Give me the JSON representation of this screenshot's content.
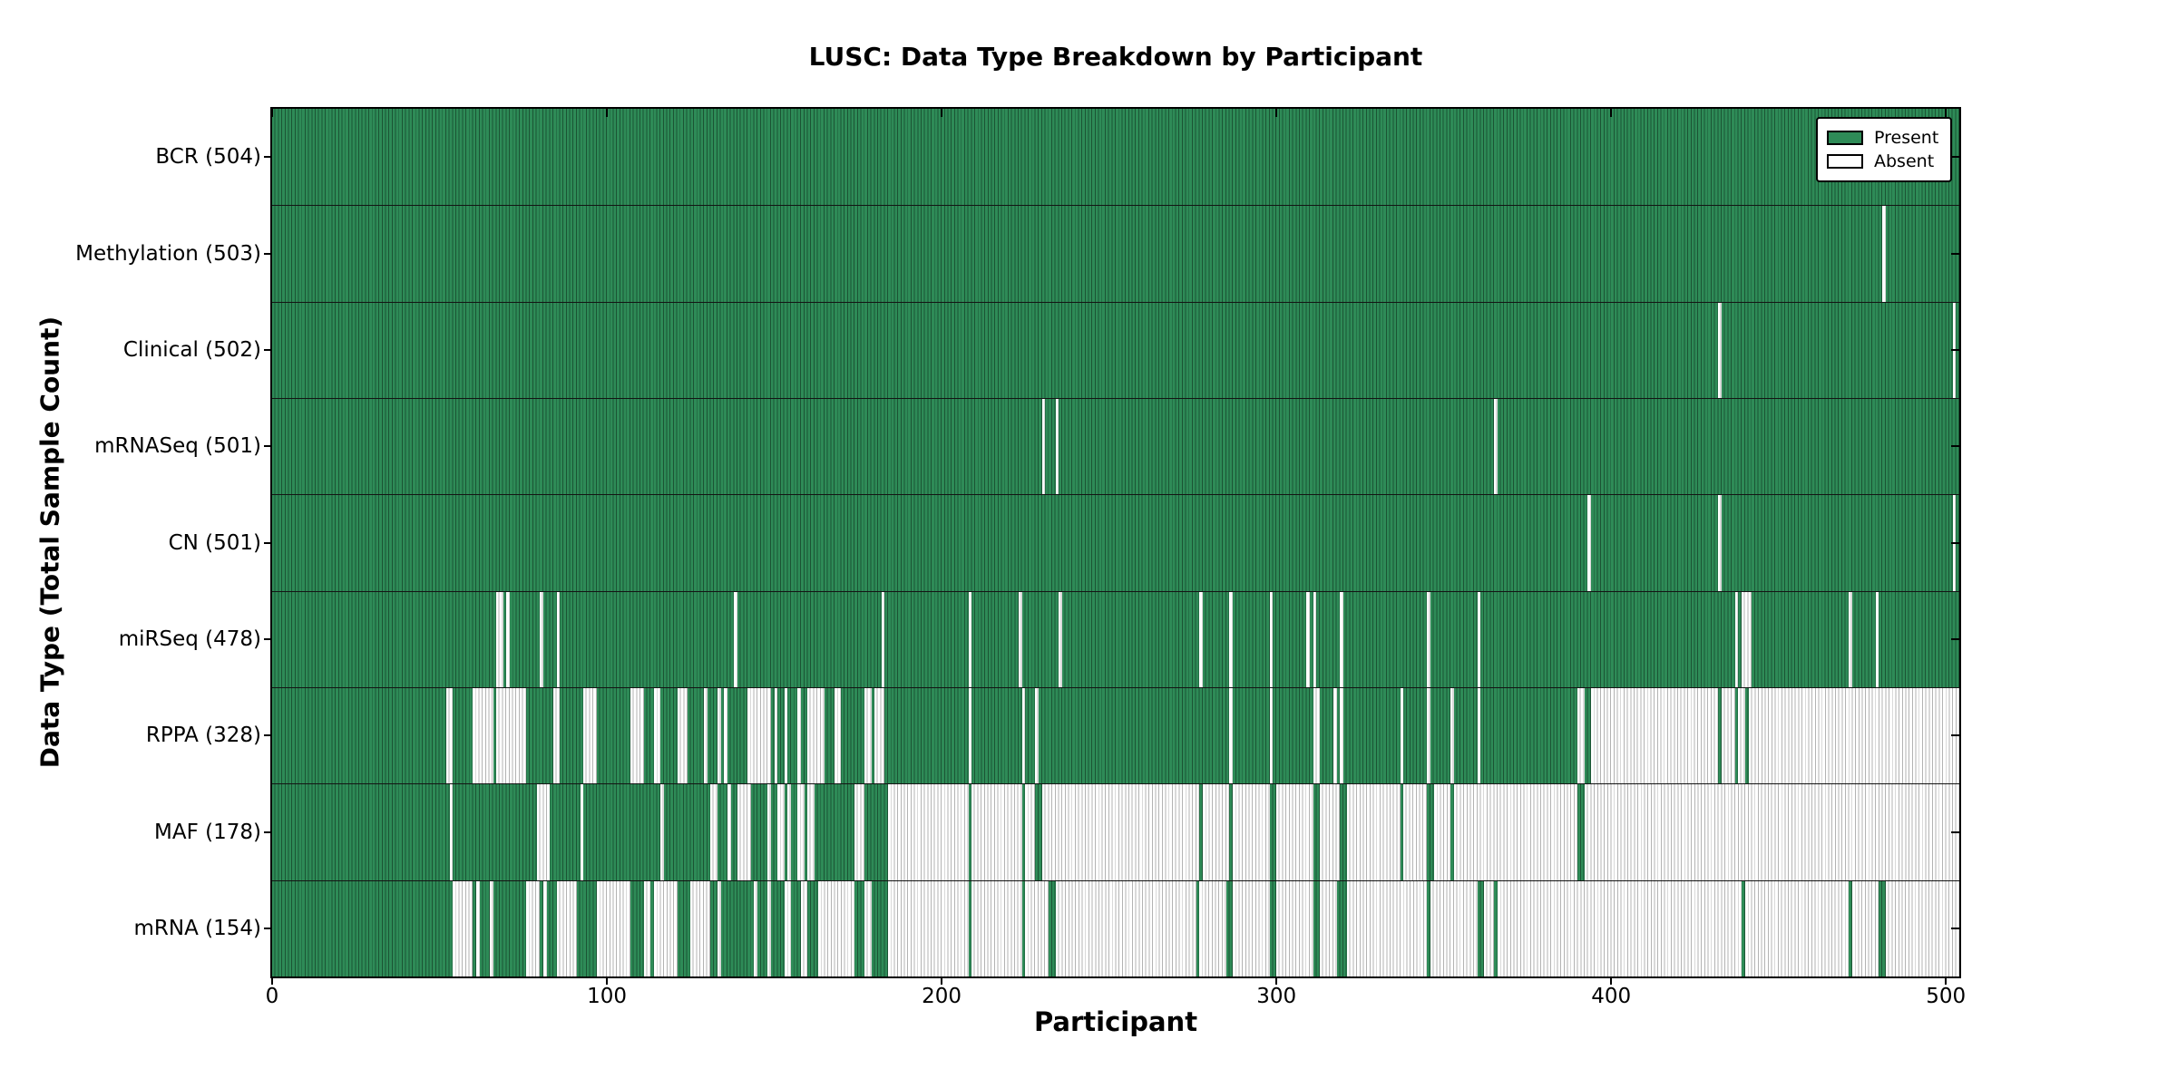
{
  "chart_data": {
    "type": "heatmap",
    "title": "LUSC: Data Type Breakdown by Participant",
    "xlabel": "Participant",
    "ylabel": "Data Type (Total Sample Count)",
    "grid": false,
    "legend_position": "upper right",
    "legend": [
      {
        "label": "Present",
        "color": "#2e8b57"
      },
      {
        "label": "Absent",
        "color": "#ffffff"
      }
    ],
    "x_axis": {
      "ticks": [
        0,
        100,
        200,
        300,
        400,
        500
      ],
      "max": 504
    },
    "cell_states": [
      "present",
      "absent"
    ],
    "rows": [
      {
        "label": "BCR (504)",
        "data_type": "BCR",
        "present_count": 504,
        "absent_ranges": []
      },
      {
        "label": "Methylation (503)",
        "data_type": "Methylation",
        "present_count": 503,
        "absent_ranges": [
          [
            481,
            482
          ]
        ]
      },
      {
        "label": "Clinical (502)",
        "data_type": "Clinical",
        "present_count": 502,
        "absent_ranges": [
          [
            432,
            433
          ],
          [
            502,
            503
          ]
        ]
      },
      {
        "label": "mRNASeq (501)",
        "data_type": "mRNASeq",
        "present_count": 501,
        "absent_ranges": [
          [
            230,
            231
          ],
          [
            234,
            235
          ],
          [
            365,
            366
          ]
        ]
      },
      {
        "label": "CN (501)",
        "data_type": "CN",
        "present_count": 501,
        "absent_ranges": [
          [
            393,
            394
          ],
          [
            432,
            433
          ],
          [
            502,
            503
          ]
        ]
      },
      {
        "label": "miRSeq (478)",
        "data_type": "miRSeq",
        "present_count": 478,
        "absent_ranges": [
          [
            67,
            69
          ],
          [
            70,
            71
          ],
          [
            80,
            81
          ],
          [
            85,
            86
          ],
          [
            138,
            139
          ],
          [
            182,
            183
          ],
          [
            208,
            209
          ],
          [
            223,
            224
          ],
          [
            235,
            236
          ],
          [
            277,
            278
          ],
          [
            286,
            287
          ],
          [
            298,
            299
          ],
          [
            309,
            310
          ],
          [
            311,
            312
          ],
          [
            319,
            320
          ],
          [
            345,
            346
          ],
          [
            360,
            361
          ],
          [
            437,
            438
          ],
          [
            439,
            442
          ],
          [
            471,
            472
          ],
          [
            479,
            480
          ]
        ]
      },
      {
        "label": "RPPA (328)",
        "data_type": "RPPA",
        "present_count": 328,
        "absent_ranges": [
          [
            52,
            54
          ],
          [
            60,
            66
          ],
          [
            67,
            76
          ],
          [
            84,
            86
          ],
          [
            93,
            97
          ],
          [
            107,
            111
          ],
          [
            114,
            116
          ],
          [
            121,
            124
          ],
          [
            129,
            130
          ],
          [
            133,
            134
          ],
          [
            135,
            136
          ],
          [
            142,
            149
          ],
          [
            150,
            151
          ],
          [
            153,
            154
          ],
          [
            157,
            158
          ],
          [
            160,
            165
          ],
          [
            168,
            170
          ],
          [
            177,
            179
          ],
          [
            180,
            183
          ],
          [
            208,
            209
          ],
          [
            224,
            225
          ],
          [
            228,
            229
          ],
          [
            286,
            287
          ],
          [
            298,
            299
          ],
          [
            311,
            313
          ],
          [
            317,
            318
          ],
          [
            319,
            320
          ],
          [
            337,
            338
          ],
          [
            345,
            346
          ],
          [
            352,
            353
          ],
          [
            360,
            361
          ],
          [
            390,
            392
          ],
          [
            394,
            432
          ],
          [
            433,
            437
          ],
          [
            438,
            440
          ],
          [
            441,
            504
          ]
        ]
      },
      {
        "label": "MAF (178)",
        "data_type": "MAF",
        "present_count": 178,
        "absent_ranges": [
          [
            53,
            54
          ],
          [
            79,
            83
          ],
          [
            92,
            93
          ],
          [
            116,
            117
          ],
          [
            131,
            133
          ],
          [
            136,
            137
          ],
          [
            139,
            143
          ],
          [
            148,
            149
          ],
          [
            151,
            153
          ],
          [
            154,
            155
          ],
          [
            157,
            159
          ],
          [
            160,
            162
          ],
          [
            174,
            177
          ],
          [
            184,
            208
          ],
          [
            209,
            224
          ],
          [
            225,
            228
          ],
          [
            230,
            277
          ],
          [
            278,
            286
          ],
          [
            287,
            298
          ],
          [
            300,
            311
          ],
          [
            313,
            319
          ],
          [
            321,
            337
          ],
          [
            338,
            345
          ],
          [
            347,
            352
          ],
          [
            353,
            390
          ],
          [
            392,
            504
          ]
        ]
      },
      {
        "label": "mRNA (154)",
        "data_type": "mRNA",
        "present_count": 154,
        "absent_ranges": [
          [
            54,
            60
          ],
          [
            61,
            62
          ],
          [
            65,
            66
          ],
          [
            76,
            80
          ],
          [
            81,
            82
          ],
          [
            85,
            91
          ],
          [
            97,
            107
          ],
          [
            111,
            113
          ],
          [
            114,
            121
          ],
          [
            125,
            131
          ],
          [
            133,
            134
          ],
          [
            144,
            145
          ],
          [
            148,
            149
          ],
          [
            153,
            155
          ],
          [
            158,
            160
          ],
          [
            163,
            174
          ],
          [
            177,
            179
          ],
          [
            184,
            208
          ],
          [
            209,
            224
          ],
          [
            225,
            232
          ],
          [
            234,
            276
          ],
          [
            277,
            285
          ],
          [
            287,
            298
          ],
          [
            300,
            311
          ],
          [
            313,
            318
          ],
          [
            321,
            345
          ],
          [
            346,
            360
          ],
          [
            362,
            365
          ],
          [
            366,
            439
          ],
          [
            440,
            471
          ],
          [
            472,
            480
          ],
          [
            482,
            504
          ]
        ]
      }
    ]
  },
  "colors": {
    "present_fill": "#2e8b57",
    "present_bar_edge": "#1b5434",
    "absent_fill": "#ffffff",
    "absent_bar_edge": "#b3b3b3",
    "axis_border": "#000000",
    "row_divider": "#141414",
    "background": "#ffffff"
  }
}
